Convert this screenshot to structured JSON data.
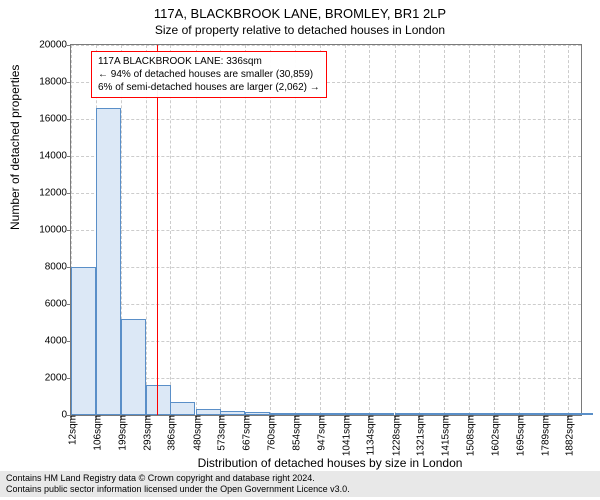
{
  "title": "117A, BLACKBROOK LANE, BROMLEY, BR1 2LP",
  "subtitle": "Size of property relative to detached houses in London",
  "ylabel": "Number of detached properties",
  "xlabel": "Distribution of detached houses by size in London",
  "footer_line1": "Contains HM Land Registry data © Crown copyright and database right 2024.",
  "footer_line2": "Contains public sector information licensed under the Open Government Licence v3.0.",
  "chart": {
    "type": "histogram",
    "background_color": "#ffffff",
    "grid_color": "#cccccc",
    "axis_color": "#7a7a7a",
    "bar_fill": "#dce8f6",
    "bar_border": "#5a8fc8",
    "marker_line_color": "#ff0000",
    "annotation_border": "#ff0000",
    "ylim": [
      0,
      20000
    ],
    "ytick_step": 2000,
    "yticks": [
      0,
      2000,
      4000,
      6000,
      8000,
      10000,
      12000,
      14000,
      16000,
      18000,
      20000
    ],
    "x_min": 12,
    "x_max": 1929,
    "xtick_labels": [
      "12sqm",
      "106sqm",
      "199sqm",
      "293sqm",
      "386sqm",
      "480sqm",
      "573sqm",
      "667sqm",
      "760sqm",
      "854sqm",
      "947sqm",
      "1041sqm",
      "1134sqm",
      "1228sqm",
      "1321sqm",
      "1415sqm",
      "1508sqm",
      "1602sqm",
      "1695sqm",
      "1789sqm",
      "1882sqm"
    ],
    "xtick_values": [
      12,
      106,
      199,
      293,
      386,
      480,
      573,
      667,
      760,
      854,
      947,
      1041,
      1134,
      1228,
      1321,
      1415,
      1508,
      1602,
      1695,
      1789,
      1882
    ],
    "bar_width_sqm": 94,
    "bars": [
      {
        "start": 12,
        "value": 8000
      },
      {
        "start": 106,
        "value": 16600
      },
      {
        "start": 199,
        "value": 5200
      },
      {
        "start": 293,
        "value": 1600
      },
      {
        "start": 386,
        "value": 700
      },
      {
        "start": 480,
        "value": 350
      },
      {
        "start": 573,
        "value": 200
      },
      {
        "start": 667,
        "value": 150
      },
      {
        "start": 760,
        "value": 100
      },
      {
        "start": 854,
        "value": 70
      },
      {
        "start": 947,
        "value": 50
      },
      {
        "start": 1041,
        "value": 40
      },
      {
        "start": 1134,
        "value": 30
      },
      {
        "start": 1228,
        "value": 20
      },
      {
        "start": 1321,
        "value": 20
      },
      {
        "start": 1415,
        "value": 15
      },
      {
        "start": 1508,
        "value": 10
      },
      {
        "start": 1602,
        "value": 10
      },
      {
        "start": 1695,
        "value": 10
      },
      {
        "start": 1789,
        "value": 8
      },
      {
        "start": 1882,
        "value": 5
      }
    ],
    "marker_x": 336,
    "annotation": {
      "line1": "117A BLACKBROOK LANE: 336sqm",
      "line2": "← 94% of detached houses are smaller (30,859)",
      "line3": "6% of semi-detached houses are larger (2,062) →"
    }
  },
  "fontsize": {
    "title": 13,
    "subtitle": 12,
    "axis_label": 12,
    "tick": 10,
    "annotation": 10,
    "footer": 9
  }
}
